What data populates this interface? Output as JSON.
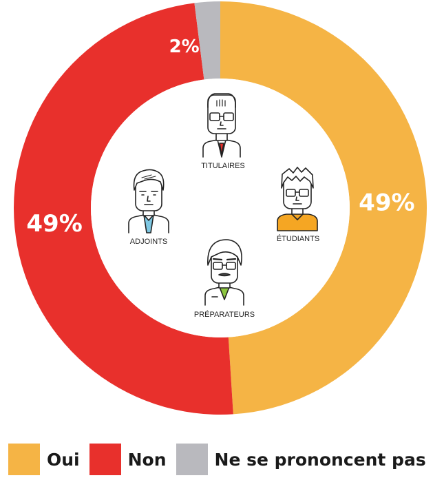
{
  "chart_data": {
    "type": "pie",
    "donut": true,
    "title": "",
    "slices": [
      {
        "label": "Oui",
        "value": 49,
        "display": "49%",
        "color": "#f5b445"
      },
      {
        "label": "Non",
        "value": 49,
        "display": "49%",
        "color": "#e8302c"
      },
      {
        "label": "Ne se prononcent pas",
        "value": 2,
        "display": "2%",
        "color": "#b9b9be"
      }
    ],
    "legend_placement": "bottom"
  },
  "center": {
    "roles": [
      {
        "id": "titulaires",
        "label": "TITULAIRES"
      },
      {
        "id": "etudiants",
        "label": "ÉTUDIANTS"
      },
      {
        "id": "adjoints",
        "label": "ADJOINTS"
      },
      {
        "id": "preparateurs",
        "label": "PRÉPARATEURS"
      }
    ]
  }
}
